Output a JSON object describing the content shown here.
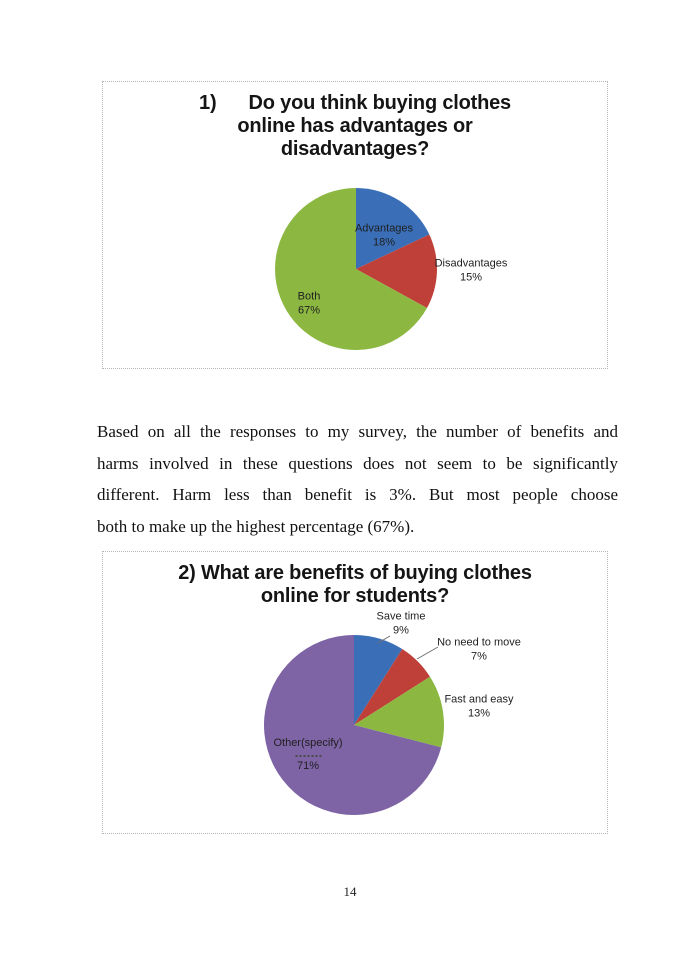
{
  "page": {
    "number": "14",
    "background": "#ffffff"
  },
  "paragraph": {
    "lines": [
      "Based on all the responses to my survey, the number of benefits and",
      "harms involved in these questions does not seem to be significantly",
      "different. Harm less than benefit is 3%. But most people choose",
      "both to make up the highest percentage (67%)."
    ],
    "full_text": "Based on all the responses to my survey, the number of benefits and harms involved in these questions does not seem to be significantly different. Harm less than benefit is 3%. But most people choose both to make up the highest percentage (67%)."
  },
  "chart_data": [
    {
      "type": "pie",
      "title": "1)      Do you think buying clothes\nonline has advantages or\ndisadvantages?",
      "title_plain": "1) Do you think buying clothes online has advantages or disadvantages?",
      "categories": [
        "Advantages",
        "Disadvantages",
        "Both"
      ],
      "values": [
        18,
        15,
        67
      ],
      "unit": "%",
      "start_angle_deg": 0,
      "direction": "clockwise",
      "legend": "none - data labels on/near slices",
      "slices": [
        {
          "label": "Advantages",
          "value": 18,
          "pct_label": "18%",
          "color": "#3a6fb8",
          "label_position": "inside"
        },
        {
          "label": "Disadvantages",
          "value": 15,
          "pct_label": "15%",
          "color": "#bf4038",
          "label_position": "outside-right"
        },
        {
          "label": "Both",
          "value": 67,
          "pct_label": "67%",
          "color": "#8cb842",
          "label_position": "inside"
        }
      ]
    },
    {
      "type": "pie",
      "title": "2) What are benefits of buying clothes\nonline for students?",
      "title_plain": "2) What are benefits of buying clothes online for students?",
      "categories": [
        "Save time",
        "No need to move",
        "Fast and easy",
        "Other(specify)"
      ],
      "values": [
        9,
        7,
        13,
        71
      ],
      "unit": "%",
      "start_angle_deg": 0,
      "direction": "clockwise",
      "legend": "none - data labels with leader lines",
      "slices": [
        {
          "label": "Save time",
          "value": 9,
          "pct_label": "9%",
          "color": "#3a6fb8",
          "label_position": "outside-top"
        },
        {
          "label": "No need to move",
          "value": 7,
          "pct_label": "7%",
          "color": "#bf4038",
          "label_position": "outside-right"
        },
        {
          "label": "Fast and easy",
          "value": 13,
          "pct_label": "13%",
          "color": "#8cb842",
          "label_position": "outside-right"
        },
        {
          "label": "Other(specify)",
          "value": 71,
          "pct_label": "71%",
          "color": "#7e63a5",
          "label_position": "inside"
        }
      ]
    }
  ]
}
